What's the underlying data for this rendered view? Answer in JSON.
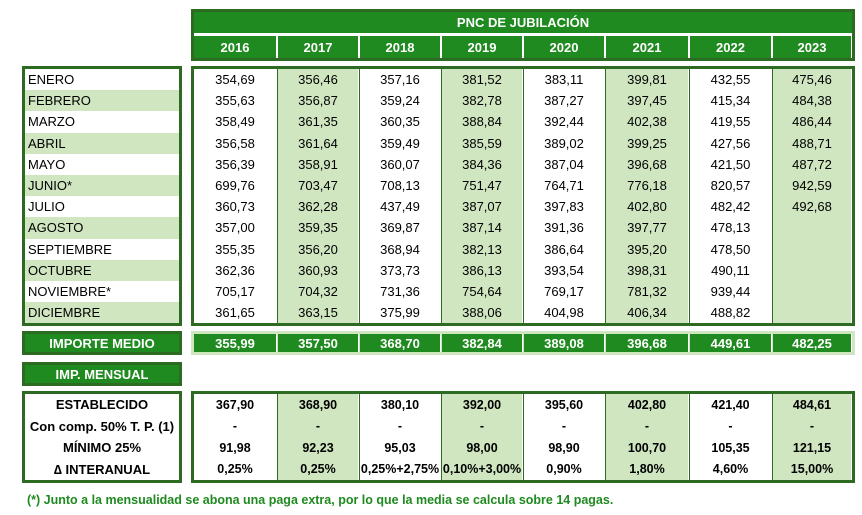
{
  "title": "PNC DE JUBILACIÓN",
  "years": [
    "2016",
    "2017",
    "2018",
    "2019",
    "2020",
    "2021",
    "2022",
    "2023"
  ],
  "months": [
    {
      "name": "ENERO",
      "values": [
        "354,69",
        "356,46",
        "357,16",
        "381,52",
        "383,11",
        "399,81",
        "432,55",
        "475,46"
      ]
    },
    {
      "name": "FEBRERO",
      "values": [
        "355,63",
        "356,87",
        "359,24",
        "382,78",
        "387,27",
        "397,45",
        "415,34",
        "484,38"
      ]
    },
    {
      "name": "MARZO",
      "values": [
        "358,49",
        "361,35",
        "360,35",
        "388,84",
        "392,44",
        "402,38",
        "419,55",
        "486,44"
      ]
    },
    {
      "name": "ABRIL",
      "values": [
        "356,58",
        "361,64",
        "359,49",
        "385,59",
        "389,02",
        "399,25",
        "427,56",
        "488,71"
      ]
    },
    {
      "name": "MAYO",
      "values": [
        "356,39",
        "358,91",
        "360,07",
        "384,36",
        "387,04",
        "396,68",
        "421,50",
        "487,72"
      ]
    },
    {
      "name": "JUNIO*",
      "values": [
        "699,76",
        "703,47",
        "708,13",
        "751,47",
        "764,71",
        "776,18",
        "820,57",
        "942,59"
      ]
    },
    {
      "name": "JULIO",
      "values": [
        "360,73",
        "362,28",
        "437,49",
        "387,07",
        "397,83",
        "402,80",
        "482,42",
        "492,68"
      ]
    },
    {
      "name": "AGOSTO",
      "values": [
        "357,00",
        "359,35",
        "369,87",
        "387,14",
        "391,36",
        "397,77",
        "478,13",
        ""
      ]
    },
    {
      "name": "SEPTIEMBRE",
      "values": [
        "355,35",
        "356,20",
        "368,94",
        "382,13",
        "386,64",
        "395,20",
        "478,50",
        ""
      ]
    },
    {
      "name": "OCTUBRE",
      "values": [
        "362,36",
        "360,93",
        "373,73",
        "386,13",
        "393,54",
        "398,31",
        "490,11",
        ""
      ]
    },
    {
      "name": "NOVIEMBRE*",
      "values": [
        "705,17",
        "704,32",
        "731,36",
        "754,64",
        "769,17",
        "781,32",
        "939,44",
        ""
      ]
    },
    {
      "name": "DICIEMBRE",
      "values": [
        "361,65",
        "363,15",
        "375,99",
        "388,06",
        "404,98",
        "406,34",
        "488,82",
        ""
      ]
    }
  ],
  "importe_medio": {
    "label": "IMPORTE MEDIO",
    "values": [
      "355,99",
      "357,50",
      "368,70",
      "382,84",
      "389,08",
      "396,68",
      "449,61",
      "482,25"
    ]
  },
  "imp_mensual_label": "IMP. MENSUAL",
  "mensual_rows": [
    {
      "name": "ESTABLECIDO",
      "values": [
        "367,90",
        "368,90",
        "380,10",
        "392,00",
        "395,60",
        "402,80",
        "421,40",
        "484,61"
      ]
    },
    {
      "name": "Con comp. 50% T. P. (1)",
      "values": [
        "-",
        "-",
        "-",
        "-",
        "-",
        "-",
        "-",
        "-"
      ]
    },
    {
      "name": "MÍNIMO 25%",
      "values": [
        "91,98",
        "92,23",
        "95,03",
        "98,00",
        "98,90",
        "100,70",
        "105,35",
        "121,15"
      ]
    },
    {
      "name": "∆ INTERANUAL",
      "values": [
        "0,25%",
        "0,25%",
        "0,25%+2,75%",
        "0,10%+3,00%",
        "0,90%",
        "1,80%",
        "4,60%",
        "15,00%"
      ]
    }
  ],
  "footnote": "(*) Junto a la mensualidad se abona una paga extra, por lo que la media se calcula sobre 14 pagas."
}
